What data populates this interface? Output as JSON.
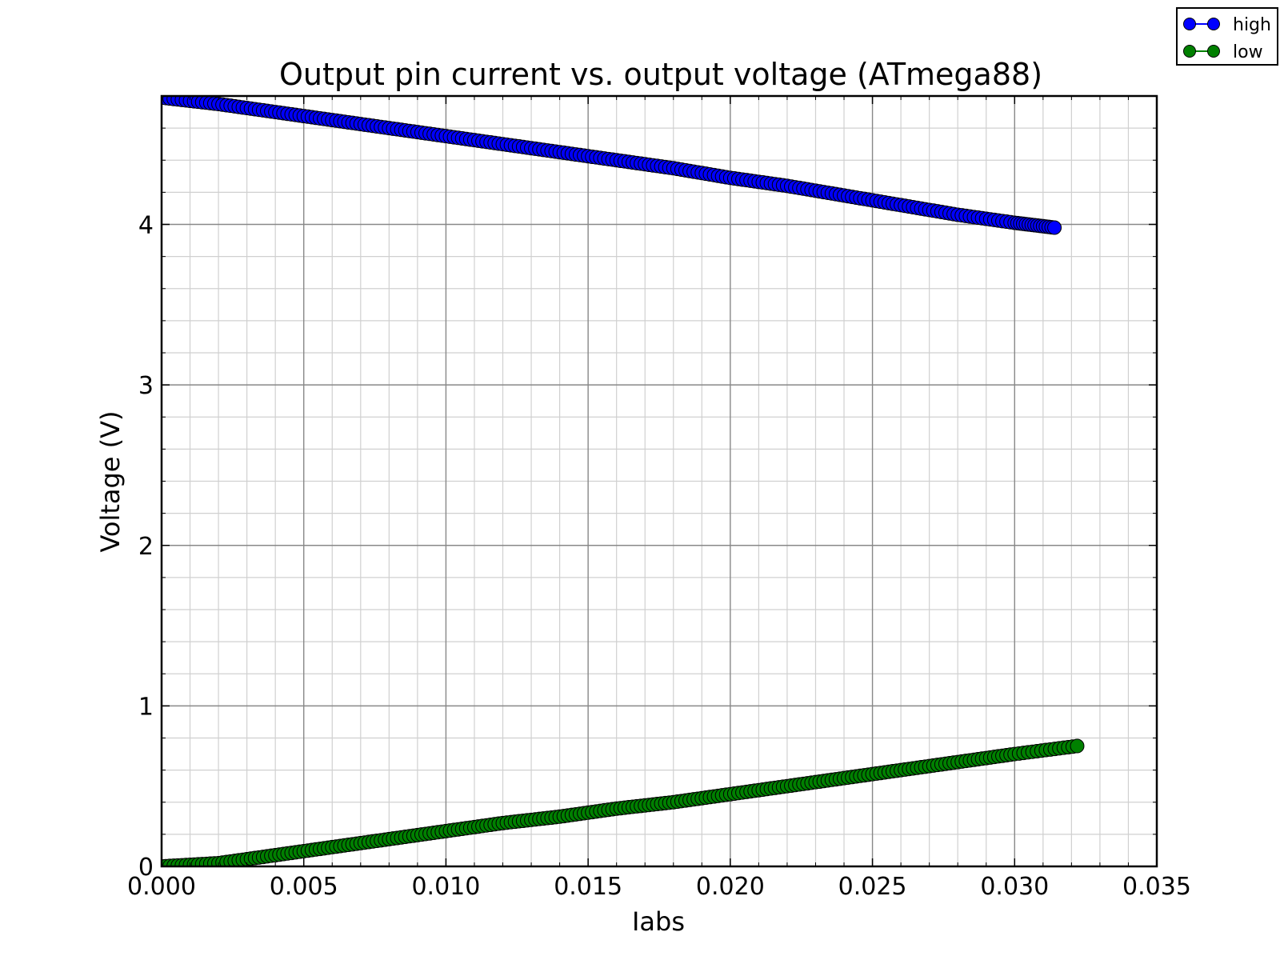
{
  "chart_data": {
    "type": "scatter",
    "title": "Output pin current vs. output voltage (ATmega88)",
    "xlabel": "Iabs",
    "ylabel": "Voltage (V)",
    "xlim": [
      0,
      0.035
    ],
    "ylim": [
      0,
      4.8
    ],
    "xticks": [
      "0.000",
      "0.005",
      "0.010",
      "0.015",
      "0.020",
      "0.025",
      "0.030",
      "0.035"
    ],
    "yticks": [
      "0",
      "1",
      "2",
      "3",
      "4"
    ],
    "grid": true,
    "legend_position": "top-right outside",
    "series": [
      {
        "name": "high",
        "color": "#0000ff",
        "x": [
          0.0,
          0.002,
          0.004,
          0.006,
          0.008,
          0.01,
          0.012,
          0.014,
          0.016,
          0.018,
          0.02,
          0.022,
          0.024,
          0.026,
          0.028,
          0.03,
          0.0314
        ],
        "y": [
          4.79,
          4.75,
          4.7,
          4.65,
          4.6,
          4.55,
          4.5,
          4.45,
          4.4,
          4.35,
          4.29,
          4.24,
          4.18,
          4.12,
          4.06,
          4.01,
          3.98
        ]
      },
      {
        "name": "low",
        "color": "#008000",
        "x": [
          0.0,
          0.002,
          0.004,
          0.006,
          0.008,
          0.01,
          0.012,
          0.014,
          0.016,
          0.018,
          0.02,
          0.022,
          0.024,
          0.026,
          0.028,
          0.03,
          0.0322
        ],
        "y": [
          0.0,
          0.02,
          0.07,
          0.12,
          0.17,
          0.22,
          0.27,
          0.31,
          0.36,
          0.4,
          0.45,
          0.5,
          0.55,
          0.6,
          0.65,
          0.7,
          0.75
        ]
      }
    ]
  }
}
